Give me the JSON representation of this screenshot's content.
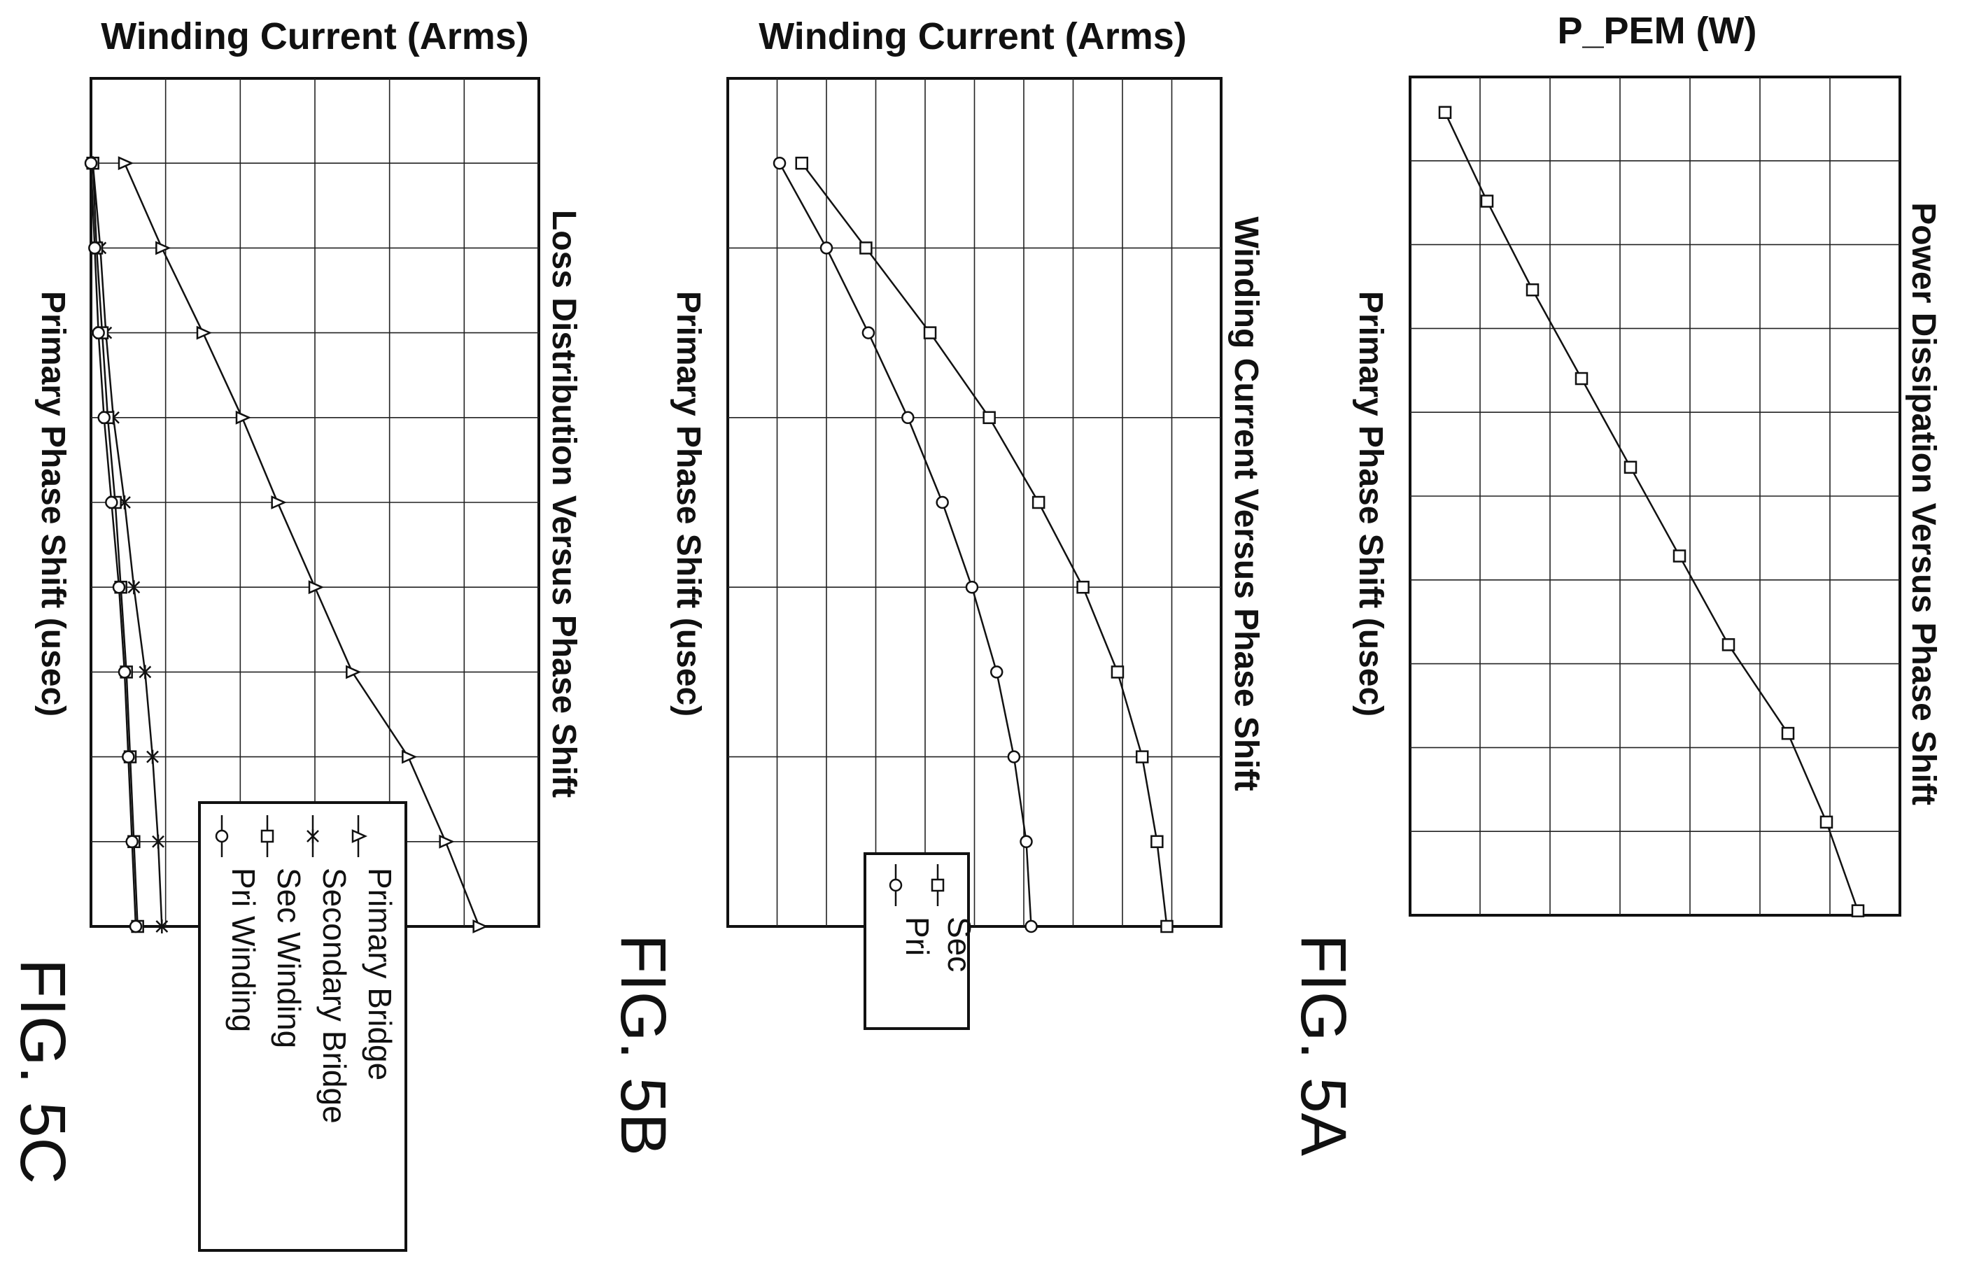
{
  "chart_data": [
    {
      "figure_label": "FIG. 5A",
      "type": "line",
      "title": "Power Dissipation Versus Phase Shift",
      "ylabel": "P_PEM (W)",
      "xlabel": "Primary Phase Shift (usec)",
      "grid": true,
      "x_tick_labels": false,
      "y_tick_labels": false,
      "x": [
        0,
        1,
        2,
        3,
        4,
        5,
        6,
        7,
        8,
        9
      ],
      "xlim": [
        -0.4,
        9.05
      ],
      "ylim": [
        0,
        7
      ],
      "legend": null,
      "series": [
        {
          "marker": "square",
          "values": [
            0.5,
            1.1,
            1.75,
            2.45,
            3.15,
            3.85,
            4.55,
            5.4,
            5.95,
            6.4
          ]
        }
      ]
    },
    {
      "figure_label": "FIG. 5B",
      "type": "line",
      "title": "Winding Current Versus Phase Shift",
      "ylabel": "Winding Current (Arms)",
      "xlabel": "Primary Phase Shift (usec)",
      "grid": true,
      "x_tick_labels": false,
      "y_tick_labels": false,
      "x": [
        0,
        1,
        2,
        3,
        4,
        5,
        6,
        7,
        8,
        9
      ],
      "xlim": [
        -1,
        9
      ],
      "ylim": [
        0,
        10
      ],
      "legend": {
        "position": "bottom-left",
        "entries": [
          "Sec",
          "Pri"
        ]
      },
      "series": [
        {
          "name": "Sec",
          "marker": "square",
          "values": [
            1.5,
            2.8,
            4.1,
            5.3,
            6.3,
            7.2,
            7.9,
            8.4,
            8.7,
            8.9
          ]
        },
        {
          "name": "Pri",
          "marker": "circle",
          "values": [
            1.05,
            2.0,
            2.85,
            3.65,
            4.35,
            4.95,
            5.45,
            5.8,
            6.05,
            6.15
          ]
        }
      ]
    },
    {
      "figure_label": "FIG. 5C",
      "type": "line",
      "title": "Loss Distribution Versus Phase Shift",
      "ylabel": "Winding Current (Arms)",
      "xlabel": "Primary Phase Shift (usec)",
      "grid": true,
      "x_tick_labels": false,
      "y_tick_labels": false,
      "x": [
        0,
        1,
        2,
        3,
        4,
        5,
        6,
        7,
        8,
        9
      ],
      "xlim": [
        -1,
        9
      ],
      "ylim": [
        0,
        12
      ],
      "legend": {
        "position": "bottom-right",
        "entries": [
          "Primary Bridge",
          "Secondary Bridge",
          "Sec Winding",
          "Pri Winding"
        ]
      },
      "series": [
        {
          "name": "Primary Bridge",
          "marker": "triangle",
          "values": [
            0.9,
            1.9,
            3.0,
            4.05,
            5.0,
            6.0,
            7.0,
            8.5,
            9.5,
            10.4
          ]
        },
        {
          "name": "Secondary Bridge",
          "marker": "cross",
          "values": [
            0.05,
            0.25,
            0.4,
            0.6,
            0.9,
            1.15,
            1.45,
            1.65,
            1.8,
            1.9
          ]
        },
        {
          "name": "Sec Winding",
          "marker": "square",
          "values": [
            0.05,
            0.15,
            0.3,
            0.45,
            0.65,
            0.8,
            0.95,
            1.05,
            1.15,
            1.25
          ]
        },
        {
          "name": "Pri Winding",
          "marker": "circle",
          "values": [
            0.0,
            0.1,
            0.2,
            0.35,
            0.55,
            0.75,
            0.9,
            1.0,
            1.1,
            1.2
          ]
        }
      ]
    }
  ]
}
